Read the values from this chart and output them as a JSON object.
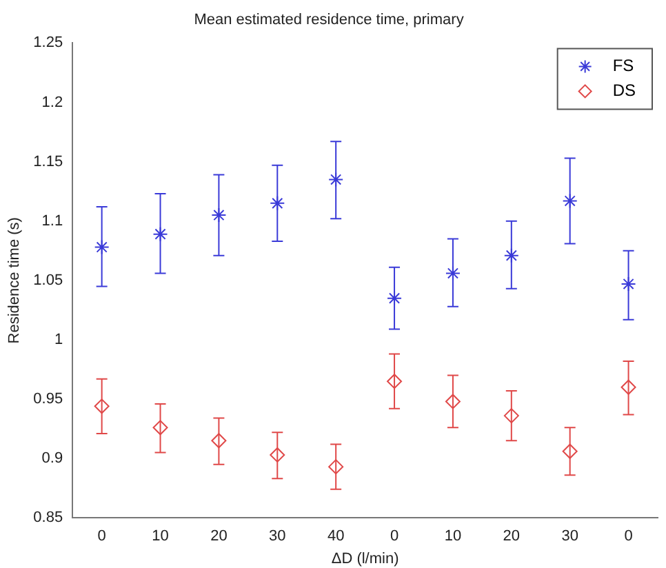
{
  "chart_data": {
    "type": "scatter",
    "title": "Mean estimated residence time, primary",
    "xlabel": "ΔD (l/min)",
    "ylabel": "Residence time (s)",
    "categories": [
      "0",
      "10",
      "20",
      "30",
      "40",
      "0",
      "10",
      "20",
      "30",
      "0"
    ],
    "series": [
      {
        "name": "FS",
        "color": "#3a3ad8",
        "marker": "cross",
        "values": [
          1.078,
          1.089,
          1.105,
          1.115,
          1.135,
          1.035,
          1.056,
          1.071,
          1.117,
          1.047
        ],
        "errors": [
          [
            1.045,
            1.112
          ],
          [
            1.056,
            1.123
          ],
          [
            1.071,
            1.139
          ],
          [
            1.083,
            1.147
          ],
          [
            1.102,
            1.167
          ],
          [
            1.009,
            1.061
          ],
          [
            1.028,
            1.085
          ],
          [
            1.043,
            1.1
          ],
          [
            1.081,
            1.153
          ],
          [
            1.017,
            1.075
          ]
        ]
      },
      {
        "name": "DS",
        "color": "#e04848",
        "marker": "diamond",
        "values": [
          0.944,
          0.926,
          0.915,
          0.903,
          0.893,
          0.965,
          0.948,
          0.936,
          0.906,
          0.96
        ],
        "errors": [
          [
            0.921,
            0.967
          ],
          [
            0.905,
            0.946
          ],
          [
            0.895,
            0.934
          ],
          [
            0.883,
            0.922
          ],
          [
            0.874,
            0.912
          ],
          [
            0.942,
            0.988
          ],
          [
            0.926,
            0.97
          ],
          [
            0.915,
            0.957
          ],
          [
            0.886,
            0.926
          ],
          [
            0.937,
            0.982
          ]
        ]
      }
    ],
    "ylim": [
      0.85,
      1.25
    ],
    "yticks": [
      0.85,
      0.9,
      0.95,
      1,
      1.05,
      1.1,
      1.15,
      1.2,
      1.25
    ],
    "grid": false,
    "legend": "top right"
  }
}
